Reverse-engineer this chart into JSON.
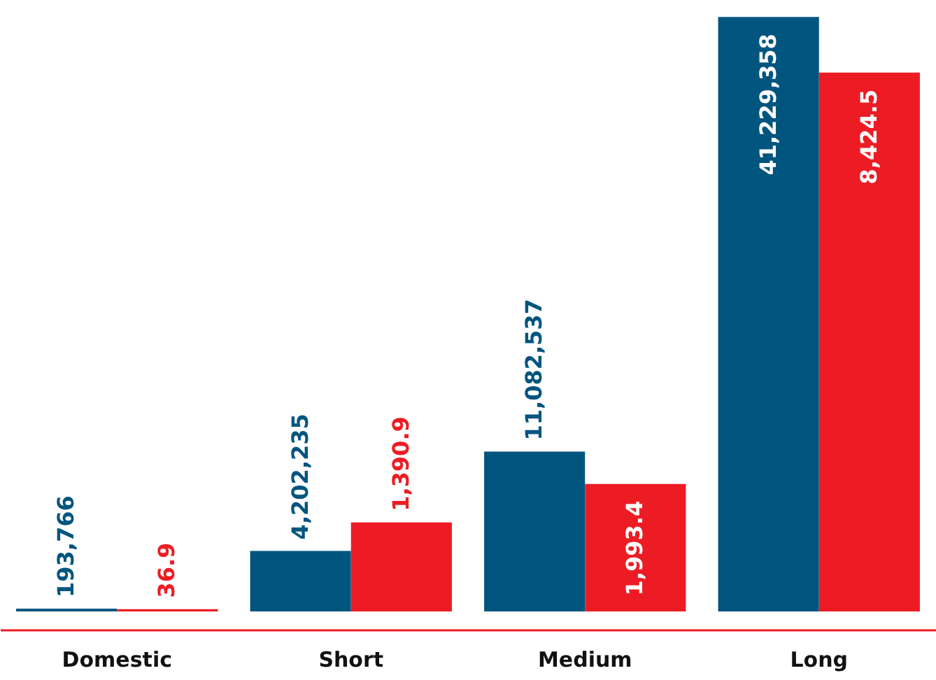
{
  "chart_data": {
    "type": "bar",
    "categories": [
      "Domestic",
      "Short",
      "Medium",
      "Long"
    ],
    "series": [
      {
        "color": "#00557f",
        "values": [
          193766,
          4202235,
          11082537,
          41229358
        ],
        "value_labels": [
          "193,766",
          "4,202,235",
          "11,082,537",
          "41,229,358"
        ]
      },
      {
        "color": "#ed1c24",
        "values": [
          36.9,
          1390.9,
          1993.4,
          8424.5
        ],
        "axis": "y2",
        "value_labels": [
          "36.9",
          "1,390.9",
          "1,993.4",
          "8,424.5"
        ]
      }
    ],
    "ylim": [
      0,
      42400000
    ],
    "y2lim": [
      0,
      9560
    ],
    "legend": false,
    "tick_labels": "x"
  }
}
